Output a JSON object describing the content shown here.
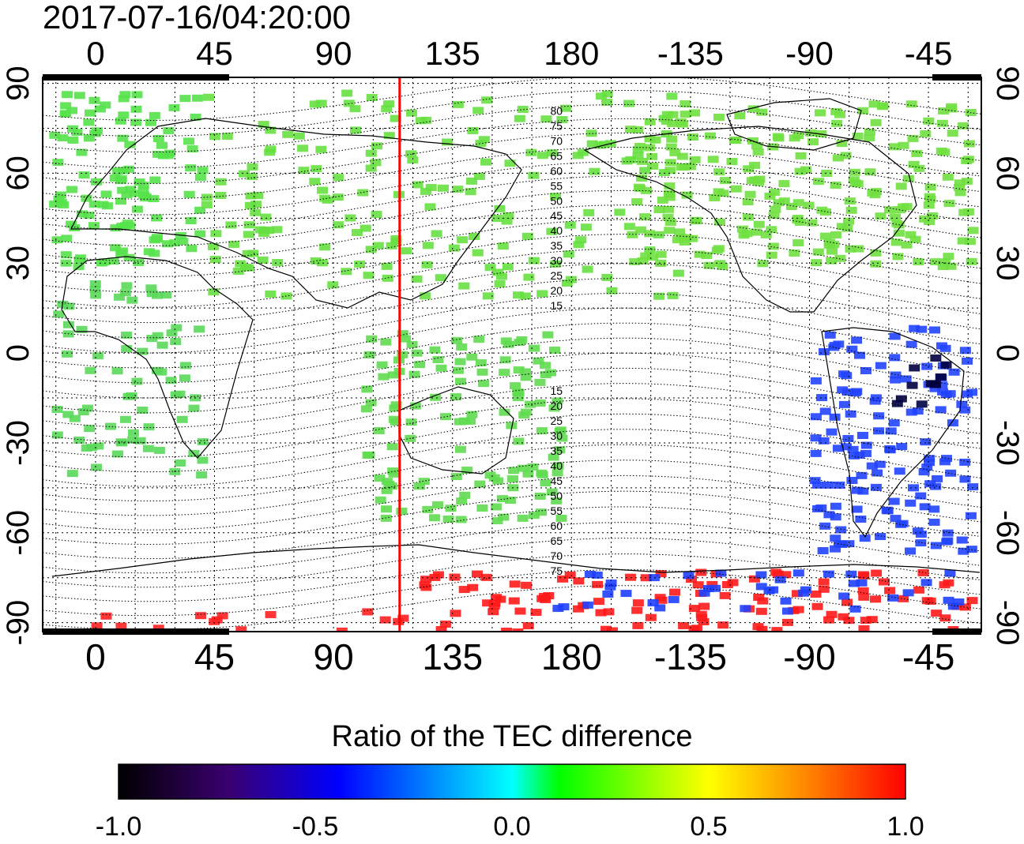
{
  "timestamp": "2017-07-16/04:20:00",
  "map": {
    "lon_ticks": [
      "0",
      "45",
      "90",
      "135",
      "180",
      "-135",
      "-90",
      "-45"
    ],
    "lat_ticks_left": [
      "90",
      "60",
      "30",
      "0",
      "-30",
      "-60",
      "-90"
    ],
    "lat_ticks_right": [
      "90",
      "60",
      "30",
      "0",
      "-30",
      "-60",
      "-90"
    ],
    "lon_range": [
      -20,
      335
    ],
    "lat_range": [
      -93,
      92
    ],
    "sun_lon": 115,
    "north_contour_labels": [
      "80",
      "75",
      "70",
      "65",
      "60",
      "55",
      "50",
      "45",
      "40",
      "35",
      "30",
      "25",
      "20",
      "15"
    ],
    "south_contour_labels": [
      "15",
      "20",
      "25",
      "30",
      "35",
      "40",
      "45",
      "50",
      "55",
      "60",
      "65",
      "70",
      "75"
    ],
    "colors": {
      "sunline": "#ff0000",
      "land": "#4ddc4d"
    }
  },
  "colorbar": {
    "title": "Ratio of the TEC difference",
    "tick_labels": [
      "-1.0",
      "-0.5",
      "0.0",
      "0.5",
      "1.0"
    ],
    "range": [
      -1.0,
      1.0
    ],
    "stops": [
      "#000000",
      "#3a0070",
      "#0000ff",
      "#00ffff",
      "#00ff00",
      "#ffff00",
      "#ff8000",
      "#ff0000"
    ]
  }
}
